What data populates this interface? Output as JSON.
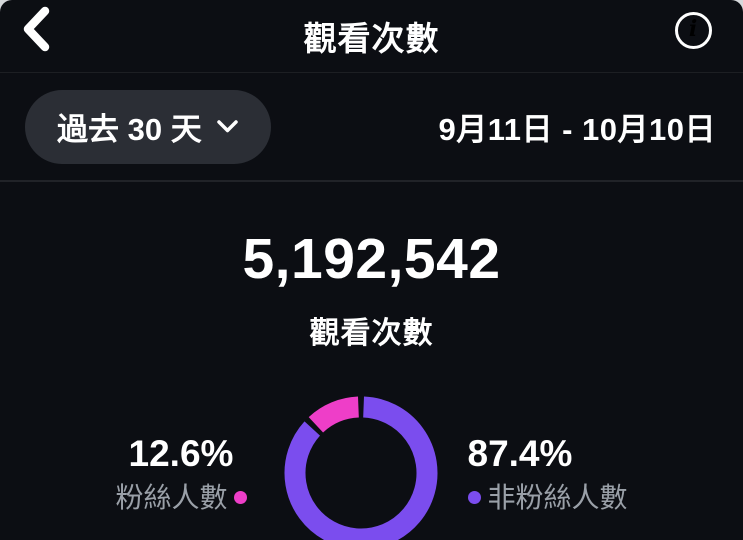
{
  "header": {
    "back_icon": "chevron-left-icon",
    "title": "觀看次數",
    "info_icon": "info-icon",
    "info_glyph": "i"
  },
  "filter": {
    "range_label": "過去 30 天",
    "range_chevron_icon": "chevron-down-icon",
    "date_range": "9月11日 - 10月10日"
  },
  "summary": {
    "value": "5,192,542",
    "label": "觀看次數"
  },
  "chart_data": {
    "type": "pie",
    "style": "donut",
    "title": "觀看次數",
    "total_value": "5,192,542",
    "legend_position": "sides",
    "start_angle_deg": 0,
    "gap_degrees": 4.5,
    "segments": [
      {
        "label": "粉絲人數",
        "value_pct": 12.6,
        "pct_text": "12.6%",
        "color": "#ee3ec8",
        "legend_side": "left"
      },
      {
        "label": "非粉絲人數",
        "value_pct": 87.4,
        "pct_text": "87.4%",
        "color": "#7b4dee",
        "legend_side": "right"
      }
    ]
  },
  "colors": {
    "background": "#0c0e13",
    "pill_background": "#2b2e35",
    "muted_text": "#9aa0a8",
    "follower_pink": "#ee3ec8",
    "non_follower_purple": "#7b4dee"
  }
}
